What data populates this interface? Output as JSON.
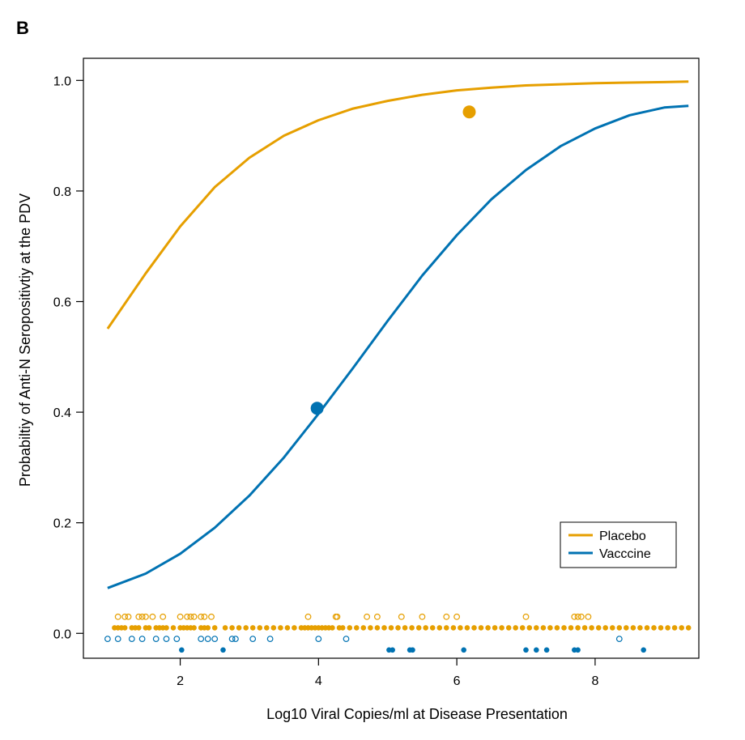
{
  "colors": {
    "placebo": "#E69F00",
    "vaccine": "#0072B2",
    "axis": "#000000"
  },
  "chart_data": {
    "type": "line",
    "panel_label": "B",
    "xlabel": "Log10 Viral Copies/ml at Disease Presentation",
    "ylabel": "Probabiltiy of Anti-N Seropositivtiy at the PDV",
    "xlim": [
      0.6,
      9.5
    ],
    "ylim": [
      -0.045,
      1.04
    ],
    "xticks": [
      2,
      4,
      6,
      8
    ],
    "yticks": [
      0.0,
      0.2,
      0.4,
      0.6,
      0.8,
      1.0
    ],
    "ytick_labels": [
      "0.0",
      "0.2",
      "0.4",
      "0.6",
      "0.8",
      "1.0"
    ],
    "grid": false,
    "legend_position": "lower-right",
    "series": [
      {
        "name": "Placebo",
        "color": "#E69F00",
        "x": [
          0.95,
          1.5,
          2.0,
          2.5,
          3.0,
          3.5,
          4.0,
          4.5,
          5.0,
          5.5,
          6.0,
          6.5,
          7.0,
          7.5,
          8.0,
          8.5,
          9.0,
          9.35
        ],
        "y": [
          0.551,
          0.651,
          0.736,
          0.807,
          0.86,
          0.9,
          0.928,
          0.949,
          0.963,
          0.974,
          0.982,
          0.987,
          0.991,
          0.993,
          0.995,
          0.996,
          0.997,
          0.998
        ],
        "summary_point": {
          "x": 6.18,
          "y": 0.943
        }
      },
      {
        "name": "Vacccine",
        "color": "#0072B2",
        "x": [
          0.95,
          1.5,
          2.0,
          2.5,
          3.0,
          3.5,
          4.0,
          4.5,
          5.0,
          5.5,
          6.0,
          6.5,
          7.0,
          7.5,
          8.0,
          8.5,
          9.0,
          9.35
        ],
        "y": [
          0.082,
          0.108,
          0.144,
          0.191,
          0.249,
          0.318,
          0.397,
          0.48,
          0.565,
          0.647,
          0.72,
          0.785,
          0.838,
          0.881,
          0.913,
          0.937,
          0.951,
          0.954
        ],
        "summary_point": {
          "x": 3.98,
          "y": 0.407
        }
      }
    ],
    "rug": {
      "placebo_positive": [
        1.05,
        1.1,
        1.15,
        1.2,
        1.3,
        1.35,
        1.4,
        1.5,
        1.55,
        1.65,
        1.7,
        1.75,
        1.8,
        1.9,
        2.0,
        2.05,
        2.1,
        2.15,
        2.2,
        2.3,
        2.35,
        2.4,
        2.5,
        2.65,
        2.75,
        2.85,
        2.95,
        3.05,
        3.15,
        3.25,
        3.35,
        3.45,
        3.55,
        3.65,
        3.75,
        3.8,
        3.85,
        3.9,
        3.95,
        4.0,
        4.05,
        4.1,
        4.15,
        4.2,
        4.3,
        4.35,
        4.45,
        4.55,
        4.65,
        4.75,
        4.85,
        4.95,
        5.05,
        5.15,
        5.25,
        5.35,
        5.45,
        5.55,
        5.65,
        5.75,
        5.85,
        5.95,
        6.05,
        6.15,
        6.25,
        6.35,
        6.45,
        6.55,
        6.65,
        6.75,
        6.85,
        6.95,
        7.05,
        7.15,
        7.25,
        7.35,
        7.45,
        7.55,
        7.65,
        7.75,
        7.85,
        7.95,
        8.05,
        8.15,
        8.25,
        8.35,
        8.45,
        8.55,
        8.65,
        8.75,
        8.85,
        8.95,
        9.05,
        9.15,
        9.25,
        9.35
      ],
      "placebo_negative": [
        1.1,
        1.2,
        1.25,
        1.4,
        1.45,
        1.5,
        1.6,
        1.75,
        2.0,
        2.1,
        2.15,
        2.2,
        2.3,
        2.35,
        2.45,
        3.85,
        4.25,
        4.27,
        4.7,
        4.85,
        5.2,
        5.5,
        5.85,
        6.0,
        7.0,
        7.7,
        7.75,
        7.8,
        7.9
      ],
      "vaccine_positive": [
        2.02,
        2.62,
        5.02,
        5.07,
        5.32,
        5.36,
        6.1,
        7.0,
        7.15,
        7.3,
        7.7,
        7.75,
        8.7
      ],
      "vaccine_negative": [
        0.95,
        1.1,
        1.3,
        1.45,
        1.65,
        1.8,
        1.95,
        2.3,
        2.4,
        2.5,
        2.75,
        2.8,
        3.05,
        3.3,
        4.0,
        4.4,
        8.35
      ]
    }
  }
}
